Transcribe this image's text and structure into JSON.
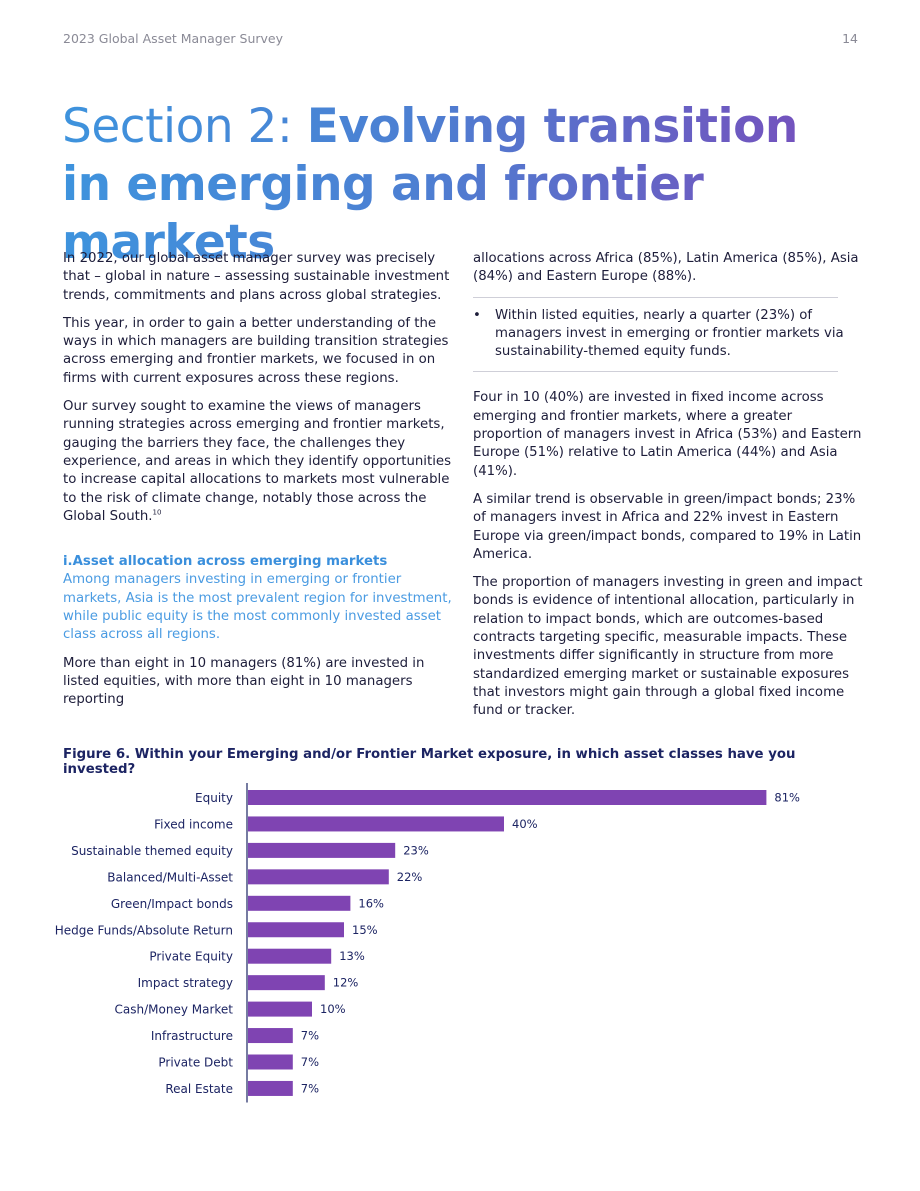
{
  "header": {
    "publication": "2023 Global Asset Manager Survey",
    "page_number": "14"
  },
  "title": {
    "light": "Section 2: ",
    "bold": "Evolving transition in emerging and frontier markets"
  },
  "left_column": {
    "p1": "In 2022, our global asset manager survey was precisely that – global in nature – assessing sustainable investment trends, commitments and plans across global strategies.",
    "p2": "This year, in order to gain a better understanding of the ways in which managers are building transition strategies across emerging and frontier markets, we focused in on firms with current exposures across these regions.",
    "p3": "Our survey sought to examine the views of managers running strategies across emerging and frontier markets, gauging the barriers they face, the challenges they experience, and areas in which they identify opportunities to increase capital allocations to markets most vulnerable to the risk of climate change, notably those across the Global South.",
    "p3_footnote": "10",
    "subheading": "i.Asset allocation across emerging markets",
    "highlight": "Among managers investing in emerging or frontier markets, Asia is the most prevalent region for investment, while public equity is the most commonly invested asset class across all regions.",
    "p4": "More than eight in 10 managers (81%) are invested in listed equities, with more than eight in 10 managers reporting"
  },
  "right_column": {
    "p1": "allocations across Africa (85%), Latin America (85%), Asia (84%) and Eastern Europe (88%).",
    "bullet_marker": "•",
    "bullet": "Within listed equities, nearly a quarter (23%) of managers invest in emerging or frontier markets via sustainability-themed equity funds.",
    "p2": "Four in 10 (40%) are invested in fixed income across emerging and frontier markets, where a greater proportion of managers invest in Africa (53%) and Eastern Europe (51%) relative to Latin America (44%) and Asia (41%).",
    "p3": "A similar trend is observable in green/impact bonds; 23% of managers invest in Africa and 22% invest in Eastern Europe via green/impact bonds, compared to 19% in Latin America.",
    "p4": "The proportion of managers investing in green and impact bonds is evidence of intentional allocation, particularly in relation to impact bonds, which are outcomes-based contracts targeting specific, measurable impacts. These investments differ significantly in structure from more standardized emerging market or sustainable exposures that investors might gain through a global fixed income fund or tracker."
  },
  "chart_data": {
    "type": "bar",
    "orientation": "horizontal",
    "title": "Figure 6. Within your Emerging and/or Frontier Market exposure, in which asset classes have you invested?",
    "categories": [
      "Equity",
      "Fixed income",
      "Sustainable themed equity",
      "Balanced/Multi-Asset",
      "Green/Impact bonds",
      "Hedge Funds/Absolute Return",
      "Private Equity",
      "Impact strategy",
      "Cash/Money Market",
      "Infrastructure",
      "Private Debt",
      "Real Estate"
    ],
    "values": [
      81,
      40,
      23,
      22,
      16,
      15,
      13,
      12,
      10,
      7,
      7,
      7
    ],
    "value_labels": [
      "81%",
      "40%",
      "23%",
      "22%",
      "16%",
      "15%",
      "13%",
      "12%",
      "10%",
      "7%",
      "7%",
      "7%"
    ],
    "unit": "%",
    "xlim": [
      0,
      100
    ],
    "grid": false,
    "bar_color": "#7f44b2"
  }
}
